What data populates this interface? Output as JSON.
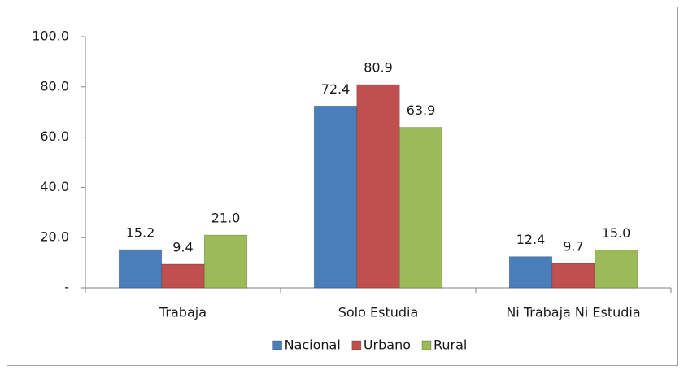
{
  "chart_data": {
    "type": "bar",
    "categories": [
      "Trabaja",
      "Solo Estudia",
      "Ni Trabaja Ni Estudia"
    ],
    "series": [
      {
        "name": "Nacional",
        "color": "#4a7ebb",
        "values": [
          15.2,
          72.4,
          12.4
        ],
        "value_labels": [
          "15.2",
          "72.4",
          "12.4"
        ]
      },
      {
        "name": "Urbano",
        "color": "#c0504d",
        "values": [
          9.4,
          80.9,
          9.7
        ],
        "value_labels": [
          "9.4",
          "80.9",
          "9.7"
        ]
      },
      {
        "name": "Rural",
        "color": "#9bbb59",
        "values": [
          21.0,
          63.9,
          15.0
        ],
        "value_labels": [
          "21.0",
          "63.9",
          "15.0"
        ]
      }
    ],
    "ylim": [
      0,
      100
    ],
    "yticks": [
      {
        "value": 0,
        "label": "-"
      },
      {
        "value": 20,
        "label": "20.0"
      },
      {
        "value": 40,
        "label": "40.0"
      },
      {
        "value": 60,
        "label": "60.0"
      },
      {
        "value": 80,
        "label": "80.0"
      },
      {
        "value": 100,
        "label": "100.0"
      }
    ],
    "grid": false,
    "legend": "bottom"
  }
}
